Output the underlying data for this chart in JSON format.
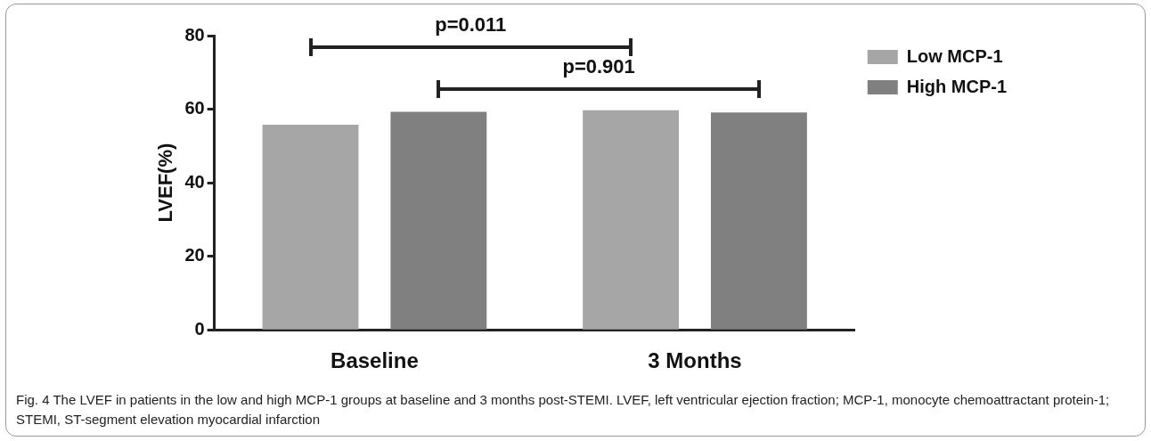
{
  "chart_data": {
    "type": "bar",
    "ylabel": "LVEF(%)",
    "categories": [
      "Baseline",
      "3 Months"
    ],
    "series": [
      {
        "name": "Low MCP-1",
        "color": "#a6a6a6",
        "values": [
          55.8,
          59.7
        ]
      },
      {
        "name": "High MCP-1",
        "color": "#808080",
        "values": [
          59.3,
          59.1
        ]
      }
    ],
    "ylim": [
      0,
      80
    ],
    "yticks": [
      0,
      20,
      40,
      60,
      80
    ],
    "grid": false,
    "legend": "top right",
    "annotations": [
      "p=0.011",
      "p=0.901",
      "Fig. 4 The LVEF in patients in the low and high MCP-1 groups at baseline and 3 months post-STEMI. LVEF, left ventricular ejection fraction; MCP-1, monocyte chemoattractant protein-1; STEMI, ST-segment elevation myocardial infarction"
    ]
  }
}
